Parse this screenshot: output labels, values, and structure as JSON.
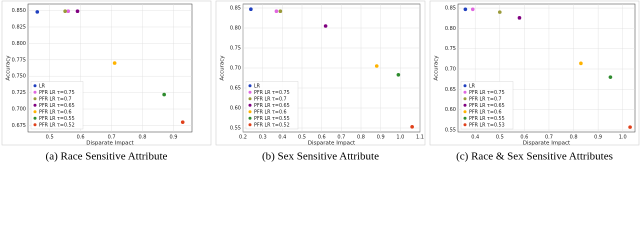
{
  "chart_data": [
    {
      "type": "scatter",
      "caption": "(a) Race Sensitive Attribute",
      "xlabel": "Disparate Impact",
      "ylabel": "Accuracy",
      "xlim": [
        0.43,
        0.96
      ],
      "ylim": [
        0.665,
        0.86
      ],
      "xticks": [
        0.5,
        0.6,
        0.7,
        0.8,
        0.9
      ],
      "yticks": [
        {
          "value": 0.675,
          "label": "0.675"
        },
        {
          "value": 0.7,
          "label": "0.700"
        },
        {
          "value": 0.725,
          "label": "0.725"
        },
        {
          "value": 0.75,
          "label": "0.750"
        },
        {
          "value": 0.775,
          "label": "0.775"
        },
        {
          "value": 0.8,
          "label": "0.800"
        },
        {
          "value": 0.825,
          "label": "0.825"
        },
        {
          "value": 0.85,
          "label": "0.850"
        }
      ],
      "grid": true,
      "legend": "lower left",
      "series": [
        {
          "name": "LR",
          "color": "#1f3fbf",
          "x": [
            0.46
          ],
          "values": [
            0.848
          ]
        },
        {
          "name": "PFR LR τ=0.75",
          "color": "#e066e0",
          "x": [
            0.56
          ],
          "values": [
            0.849
          ]
        },
        {
          "name": "PFR LR τ=0.7",
          "color": "#9a9a3a",
          "x": [
            0.55
          ],
          "values": [
            0.849
          ]
        },
        {
          "name": "PFR LR τ=0.65",
          "color": "#800080",
          "x": [
            0.59
          ],
          "values": [
            0.849
          ]
        },
        {
          "name": "PFR LR τ=0.6",
          "color": "#ffb300",
          "x": [
            0.71
          ],
          "values": [
            0.77
          ]
        },
        {
          "name": "PFR LR τ=0.55",
          "color": "#2e8b2e",
          "x": [
            0.87
          ],
          "values": [
            0.722
          ]
        },
        {
          "name": "PFR LR τ=0.52",
          "color": "#e0401a",
          "x": [
            0.93
          ],
          "values": [
            0.68
          ]
        }
      ]
    },
    {
      "type": "scatter",
      "caption": "(b) Sex Sensitive Attribute",
      "xlabel": "Disparate Impact",
      "ylabel": "Accuracy",
      "xlim": [
        0.2,
        1.1
      ],
      "ylim": [
        0.54,
        0.86
      ],
      "xticks": [
        0.2,
        0.3,
        0.4,
        0.5,
        0.6,
        0.7,
        0.8,
        0.9,
        {
          "value": 1.0,
          "label": "1.0"
        },
        1.1
      ],
      "yticks": [
        0.55,
        {
          "value": 0.6,
          "label": "0.60"
        },
        0.65,
        {
          "value": 0.7,
          "label": "0.70"
        },
        0.75,
        {
          "value": 0.8,
          "label": "0.80"
        },
        0.85
      ],
      "grid": true,
      "legend": "lower left",
      "series": [
        {
          "name": "LR",
          "color": "#1f3fbf",
          "x": [
            0.24
          ],
          "values": [
            0.847
          ]
        },
        {
          "name": "PFR LR τ=0.75",
          "color": "#e066e0",
          "x": [
            0.37
          ],
          "values": [
            0.842
          ]
        },
        {
          "name": "PFR LR τ=0.7",
          "color": "#9a9a3a",
          "x": [
            0.39
          ],
          "values": [
            0.842
          ]
        },
        {
          "name": "PFR LR τ=0.65",
          "color": "#800080",
          "x": [
            0.62
          ],
          "values": [
            0.805
          ]
        },
        {
          "name": "PFR LR τ=0.6",
          "color": "#ffb300",
          "x": [
            0.88
          ],
          "values": [
            0.705
          ]
        },
        {
          "name": "PFR LR τ=0.55",
          "color": "#2e8b2e",
          "x": [
            0.99
          ],
          "values": [
            0.683
          ]
        },
        {
          "name": "PFR LR τ=0.52",
          "color": "#e0401a",
          "x": [
            1.06
          ],
          "values": [
            0.553
          ]
        }
      ]
    },
    {
      "type": "scatter",
      "caption": "(c) Race & Sex Sensitive Attributes",
      "xlabel": "Disparate Impact",
      "ylabel": "Accuracy",
      "xlim": [
        0.33,
        1.05
      ],
      "ylim": [
        0.545,
        0.86
      ],
      "xticks": [
        0.4,
        0.5,
        0.6,
        0.7,
        0.8,
        0.9,
        {
          "value": 1.0,
          "label": "1.0"
        }
      ],
      "yticks": [
        0.55,
        {
          "value": 0.6,
          "label": "0.60"
        },
        0.65,
        {
          "value": 0.7,
          "label": "0.70"
        },
        0.75,
        {
          "value": 0.8,
          "label": "0.80"
        },
        0.85
      ],
      "grid": true,
      "legend": "lower left",
      "series": [
        {
          "name": "LR",
          "color": "#1f3fbf",
          "x": [
            0.36
          ],
          "values": [
            0.847
          ]
        },
        {
          "name": "PFR LR τ=0.75",
          "color": "#e066e0",
          "x": [
            0.39
          ],
          "values": [
            0.847
          ]
        },
        {
          "name": "PFR LR τ=0.7",
          "color": "#9a9a3a",
          "x": [
            0.5
          ],
          "values": [
            0.84
          ]
        },
        {
          "name": "PFR LR τ=0.65",
          "color": "#800080",
          "x": [
            0.58
          ],
          "values": [
            0.826
          ]
        },
        {
          "name": "PFR LR τ=0.6",
          "color": "#ffb300",
          "x": [
            0.83
          ],
          "values": [
            0.714
          ]
        },
        {
          "name": "PFR LR τ=0.55",
          "color": "#2e8b2e",
          "x": [
            0.95
          ],
          "values": [
            0.68
          ]
        },
        {
          "name": "PFR LR τ=0.53",
          "color": "#e0401a",
          "x": [
            1.03
          ],
          "values": [
            0.557
          ]
        }
      ]
    }
  ]
}
